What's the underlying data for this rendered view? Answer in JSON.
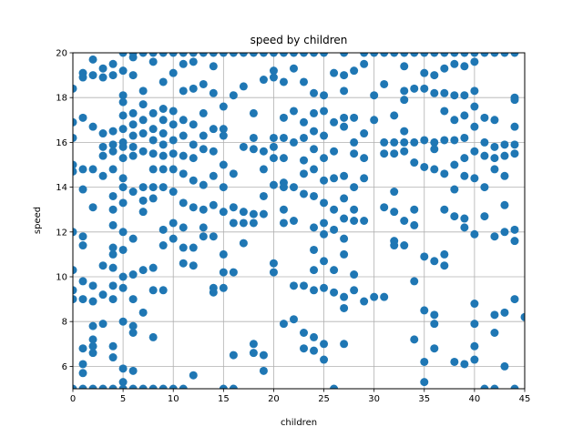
{
  "chart_data": {
    "type": "scatter",
    "title": "speed by children",
    "xlabel": "children",
    "ylabel": "speed",
    "xlim": [
      0,
      45
    ],
    "ylim": [
      5,
      20
    ],
    "xticks": [
      "0",
      "5",
      "10",
      "15",
      "20",
      "25",
      "30",
      "35",
      "40",
      "45"
    ],
    "yticks": [
      "6",
      "8",
      "10",
      "12",
      "14",
      "16",
      "18",
      "20"
    ],
    "grid": true,
    "marker_color": "#1f77b4",
    "points": [
      [
        0,
        18.4
      ],
      [
        0,
        16.9
      ],
      [
        0,
        16.2
      ],
      [
        0,
        15.0
      ],
      [
        0,
        14.7
      ],
      [
        0,
        12.0
      ],
      [
        0,
        10.3
      ],
      [
        0,
        9.4
      ],
      [
        0,
        9.0
      ],
      [
        0,
        5.0
      ],
      [
        1,
        19.1
      ],
      [
        1,
        18.9
      ],
      [
        1,
        17.1
      ],
      [
        1,
        14.8
      ],
      [
        1,
        13.9
      ],
      [
        1,
        11.8
      ],
      [
        1,
        11.4
      ],
      [
        1,
        9.8
      ],
      [
        1,
        9.0
      ],
      [
        1,
        6.8
      ],
      [
        1,
        6.1
      ],
      [
        1,
        5.7
      ],
      [
        1,
        5.0
      ],
      [
        2,
        19.7
      ],
      [
        2,
        19.0
      ],
      [
        2,
        16.7
      ],
      [
        2,
        14.8
      ],
      [
        2,
        13.1
      ],
      [
        2,
        9.6
      ],
      [
        2,
        8.9
      ],
      [
        2,
        7.8
      ],
      [
        2,
        7.2
      ],
      [
        2,
        6.9
      ],
      [
        2,
        6.6
      ],
      [
        2,
        5.0
      ],
      [
        3,
        19.3
      ],
      [
        3,
        18.9
      ],
      [
        3,
        16.4
      ],
      [
        3,
        15.8
      ],
      [
        3,
        15.4
      ],
      [
        3,
        14.5
      ],
      [
        3,
        10.5
      ],
      [
        3,
        9.2
      ],
      [
        3,
        7.9
      ],
      [
        3,
        5.0
      ],
      [
        4,
        19.5
      ],
      [
        4,
        19.0
      ],
      [
        4,
        16.5
      ],
      [
        4,
        15.9
      ],
      [
        4,
        15.6
      ],
      [
        4,
        14.8
      ],
      [
        4,
        13.6
      ],
      [
        4,
        13.0
      ],
      [
        4,
        12.3
      ],
      [
        4,
        11.3
      ],
      [
        4,
        11.0
      ],
      [
        4,
        10.4
      ],
      [
        4,
        9.6
      ],
      [
        4,
        9.0
      ],
      [
        4,
        6.9
      ],
      [
        4,
        6.4
      ],
      [
        4,
        5.0
      ],
      [
        5,
        20.0
      ],
      [
        5,
        19.2
      ],
      [
        5,
        18.1
      ],
      [
        5,
        17.8
      ],
      [
        5,
        17.2
      ],
      [
        5,
        16.6
      ],
      [
        5,
        16.0
      ],
      [
        5,
        15.8
      ],
      [
        5,
        15.3
      ],
      [
        5,
        14.4
      ],
      [
        5,
        14.0
      ],
      [
        5,
        13.3
      ],
      [
        5,
        12.0
      ],
      [
        5,
        11.2
      ],
      [
        5,
        10.0
      ],
      [
        5,
        9.5
      ],
      [
        5,
        8.0
      ],
      [
        5,
        5.9
      ],
      [
        5,
        5.3
      ],
      [
        5,
        5.0
      ],
      [
        6,
        20.0
      ],
      [
        6,
        19.8
      ],
      [
        6,
        19.0
      ],
      [
        6,
        17.3
      ],
      [
        6,
        16.8
      ],
      [
        6,
        16.3
      ],
      [
        6,
        15.8
      ],
      [
        6,
        15.4
      ],
      [
        6,
        13.8
      ],
      [
        6,
        11.7
      ],
      [
        6,
        10.1
      ],
      [
        6,
        9.0
      ],
      [
        6,
        7.8
      ],
      [
        6,
        7.5
      ],
      [
        6,
        5.8
      ],
      [
        6,
        5.0
      ],
      [
        7,
        20.0
      ],
      [
        7,
        18.3
      ],
      [
        7,
        17.7
      ],
      [
        7,
        17.0
      ],
      [
        7,
        16.4
      ],
      [
        7,
        15.6
      ],
      [
        7,
        14.0
      ],
      [
        7,
        13.4
      ],
      [
        7,
        12.9
      ],
      [
        7,
        10.3
      ],
      [
        7,
        8.4
      ],
      [
        7,
        5.0
      ],
      [
        8,
        20.0
      ],
      [
        8,
        19.6
      ],
      [
        8,
        17.3
      ],
      [
        8,
        16.6
      ],
      [
        8,
        16.1
      ],
      [
        8,
        15.5
      ],
      [
        8,
        14.8
      ],
      [
        8,
        14.0
      ],
      [
        8,
        13.5
      ],
      [
        8,
        10.4
      ],
      [
        8,
        9.4
      ],
      [
        8,
        7.3
      ],
      [
        8,
        5.0
      ],
      [
        9,
        20.0
      ],
      [
        9,
        18.7
      ],
      [
        9,
        17.5
      ],
      [
        9,
        17.0
      ],
      [
        9,
        16.4
      ],
      [
        9,
        15.9
      ],
      [
        9,
        15.4
      ],
      [
        9,
        14.8
      ],
      [
        9,
        14.0
      ],
      [
        9,
        12.1
      ],
      [
        9,
        11.4
      ],
      [
        9,
        9.4
      ],
      [
        9,
        5.0
      ],
      [
        10,
        20.0
      ],
      [
        10,
        19.1
      ],
      [
        10,
        17.4
      ],
      [
        10,
        16.8
      ],
      [
        10,
        16.1
      ],
      [
        10,
        15.5
      ],
      [
        10,
        14.8
      ],
      [
        10,
        13.8
      ],
      [
        10,
        12.4
      ],
      [
        10,
        11.7
      ],
      [
        10,
        5.0
      ],
      [
        11,
        20.0
      ],
      [
        11,
        19.5
      ],
      [
        11,
        18.3
      ],
      [
        11,
        17.0
      ],
      [
        11,
        16.3
      ],
      [
        11,
        15.4
      ],
      [
        11,
        14.6
      ],
      [
        11,
        13.3
      ],
      [
        11,
        12.2
      ],
      [
        11,
        11.3
      ],
      [
        11,
        10.6
      ],
      [
        11,
        5.0
      ],
      [
        12,
        20.0
      ],
      [
        12,
        19.6
      ],
      [
        12,
        18.4
      ],
      [
        12,
        16.8
      ],
      [
        12,
        15.9
      ],
      [
        12,
        15.3
      ],
      [
        12,
        14.3
      ],
      [
        12,
        13.1
      ],
      [
        12,
        11.3
      ],
      [
        12,
        10.5
      ],
      [
        12,
        5.6
      ],
      [
        13,
        20.0
      ],
      [
        13,
        18.6
      ],
      [
        13,
        17.3
      ],
      [
        13,
        16.3
      ],
      [
        13,
        15.7
      ],
      [
        13,
        14.1
      ],
      [
        13,
        13.0
      ],
      [
        13,
        12.2
      ],
      [
        13,
        11.8
      ],
      [
        14,
        20.0
      ],
      [
        14,
        19.4
      ],
      [
        14,
        18.2
      ],
      [
        14,
        16.6
      ],
      [
        14,
        15.6
      ],
      [
        14,
        14.5
      ],
      [
        14,
        13.2
      ],
      [
        14,
        11.8
      ],
      [
        14,
        9.5
      ],
      [
        14,
        9.3
      ],
      [
        15,
        20.0
      ],
      [
        15,
        17.6
      ],
      [
        15,
        16.6
      ],
      [
        15,
        16.3
      ],
      [
        15,
        15.0
      ],
      [
        15,
        14.0
      ],
      [
        15,
        12.9
      ],
      [
        15,
        11.0
      ],
      [
        15,
        10.2
      ],
      [
        15,
        9.5
      ],
      [
        15,
        5.0
      ],
      [
        16,
        20.0
      ],
      [
        16,
        18.1
      ],
      [
        16,
        14.6
      ],
      [
        16,
        13.1
      ],
      [
        16,
        12.4
      ],
      [
        16,
        10.2
      ],
      [
        16,
        6.5
      ],
      [
        16,
        5.0
      ],
      [
        17,
        20.0
      ],
      [
        17,
        18.5
      ],
      [
        17,
        15.8
      ],
      [
        17,
        12.9
      ],
      [
        17,
        12.4
      ],
      [
        17,
        11.5
      ],
      [
        18,
        20.0
      ],
      [
        18,
        17.3
      ],
      [
        18,
        16.2
      ],
      [
        18,
        15.7
      ],
      [
        18,
        12.8
      ],
      [
        18,
        12.4
      ],
      [
        18,
        7.0
      ],
      [
        18,
        6.6
      ],
      [
        19,
        20.0
      ],
      [
        19,
        18.8
      ],
      [
        19,
        15.6
      ],
      [
        19,
        14.8
      ],
      [
        19,
        13.6
      ],
      [
        19,
        12.8
      ],
      [
        19,
        6.5
      ],
      [
        19,
        5.8
      ],
      [
        20,
        20.0
      ],
      [
        20,
        19.2
      ],
      [
        20,
        18.9
      ],
      [
        20,
        16.2
      ],
      [
        20,
        15.8
      ],
      [
        20,
        15.3
      ],
      [
        20,
        14.1
      ],
      [
        20,
        10.6
      ],
      [
        20,
        10.2
      ],
      [
        21,
        20.0
      ],
      [
        21,
        18.7
      ],
      [
        21,
        17.1
      ],
      [
        21,
        16.2
      ],
      [
        21,
        15.3
      ],
      [
        21,
        14.2
      ],
      [
        21,
        14.0
      ],
      [
        21,
        13.0
      ],
      [
        21,
        12.4
      ],
      [
        21,
        7.9
      ],
      [
        22,
        20.0
      ],
      [
        22,
        19.3
      ],
      [
        22,
        17.4
      ],
      [
        22,
        16.0
      ],
      [
        22,
        14.0
      ],
      [
        22,
        12.5
      ],
      [
        22,
        9.6
      ],
      [
        22,
        8.1
      ],
      [
        23,
        20.0
      ],
      [
        23,
        18.7
      ],
      [
        23,
        16.9
      ],
      [
        23,
        16.2
      ],
      [
        23,
        15.2
      ],
      [
        23,
        14.6
      ],
      [
        23,
        13.7
      ],
      [
        23,
        9.6
      ],
      [
        23,
        7.5
      ],
      [
        23,
        6.8
      ],
      [
        24,
        20.0
      ],
      [
        24,
        18.2
      ],
      [
        24,
        17.3
      ],
      [
        24,
        16.5
      ],
      [
        24,
        15.7
      ],
      [
        24,
        14.8
      ],
      [
        24,
        13.6
      ],
      [
        24,
        12.2
      ],
      [
        24,
        11.2
      ],
      [
        24,
        10.3
      ],
      [
        24,
        9.4
      ],
      [
        24,
        7.3
      ],
      [
        24,
        6.7
      ],
      [
        25,
        20.0
      ],
      [
        25,
        18.1
      ],
      [
        25,
        17.4
      ],
      [
        25,
        16.3
      ],
      [
        25,
        15.3
      ],
      [
        25,
        14.3
      ],
      [
        25,
        13.3
      ],
      [
        25,
        12.4
      ],
      [
        25,
        11.9
      ],
      [
        25,
        10.7
      ],
      [
        25,
        9.5
      ],
      [
        25,
        7.0
      ],
      [
        25,
        6.3
      ],
      [
        26,
        19.1
      ],
      [
        26,
        16.9
      ],
      [
        26,
        15.6
      ],
      [
        26,
        14.4
      ],
      [
        26,
        13.0
      ],
      [
        26,
        12.1
      ],
      [
        26,
        10.3
      ],
      [
        26,
        9.3
      ],
      [
        26,
        5.0
      ],
      [
        27,
        20.0
      ],
      [
        27,
        19.0
      ],
      [
        27,
        18.3
      ],
      [
        27,
        17.1
      ],
      [
        27,
        16.7
      ],
      [
        27,
        14.5
      ],
      [
        27,
        13.5
      ],
      [
        27,
        12.6
      ],
      [
        27,
        11.7
      ],
      [
        27,
        11.0
      ],
      [
        27,
        9.1
      ],
      [
        27,
        8.6
      ],
      [
        27,
        7.0
      ],
      [
        28,
        19.2
      ],
      [
        28,
        17.1
      ],
      [
        28,
        16.0
      ],
      [
        28,
        15.5
      ],
      [
        28,
        14.0
      ],
      [
        28,
        13.0
      ],
      [
        28,
        12.5
      ],
      [
        28,
        10.1
      ],
      [
        28,
        9.4
      ],
      [
        29,
        20.0
      ],
      [
        29,
        19.5
      ],
      [
        29,
        16.4
      ],
      [
        29,
        15.3
      ],
      [
        29,
        14.4
      ],
      [
        29,
        12.5
      ],
      [
        29,
        8.9
      ],
      [
        30,
        20.0
      ],
      [
        30,
        18.1
      ],
      [
        30,
        17.0
      ],
      [
        30,
        9.1
      ],
      [
        31,
        20.0
      ],
      [
        31,
        18.6
      ],
      [
        31,
        16.0
      ],
      [
        31,
        15.5
      ],
      [
        31,
        13.1
      ],
      [
        31,
        9.1
      ],
      [
        32,
        20.0
      ],
      [
        32,
        17.2
      ],
      [
        32,
        16.0
      ],
      [
        32,
        15.5
      ],
      [
        32,
        13.8
      ],
      [
        32,
        12.9
      ],
      [
        32,
        11.6
      ],
      [
        32,
        11.4
      ],
      [
        33,
        20.0
      ],
      [
        33,
        19.4
      ],
      [
        33,
        18.3
      ],
      [
        33,
        17.9
      ],
      [
        33,
        16.5
      ],
      [
        33,
        16.0
      ],
      [
        33,
        15.6
      ],
      [
        33,
        12.5
      ],
      [
        33,
        11.4
      ],
      [
        34,
        20.0
      ],
      [
        34,
        18.4
      ],
      [
        34,
        16.0
      ],
      [
        34,
        15.1
      ],
      [
        34,
        13.0
      ],
      [
        34,
        12.3
      ],
      [
        34,
        9.8
      ],
      [
        34,
        7.2
      ],
      [
        35,
        20.0
      ],
      [
        35,
        19.1
      ],
      [
        35,
        18.4
      ],
      [
        35,
        16.1
      ],
      [
        35,
        14.9
      ],
      [
        35,
        10.9
      ],
      [
        35,
        8.5
      ],
      [
        35,
        6.2
      ],
      [
        35,
        5.3
      ],
      [
        36,
        20.0
      ],
      [
        36,
        19.0
      ],
      [
        36,
        18.2
      ],
      [
        36,
        16.0
      ],
      [
        36,
        15.7
      ],
      [
        36,
        14.8
      ],
      [
        36,
        10.7
      ],
      [
        36,
        8.3
      ],
      [
        36,
        7.9
      ],
      [
        36,
        6.8
      ],
      [
        37,
        20.0
      ],
      [
        37,
        19.3
      ],
      [
        37,
        18.2
      ],
      [
        37,
        17.4
      ],
      [
        37,
        16.1
      ],
      [
        37,
        14.6
      ],
      [
        37,
        13.0
      ],
      [
        37,
        11.0
      ],
      [
        37,
        10.5
      ],
      [
        38,
        20.0
      ],
      [
        38,
        19.5
      ],
      [
        38,
        18.1
      ],
      [
        38,
        17.0
      ],
      [
        38,
        16.1
      ],
      [
        38,
        15.0
      ],
      [
        38,
        13.9
      ],
      [
        38,
        12.7
      ],
      [
        38,
        6.2
      ],
      [
        39,
        20.0
      ],
      [
        39,
        19.4
      ],
      [
        39,
        18.1
      ],
      [
        39,
        17.2
      ],
      [
        39,
        16.2
      ],
      [
        39,
        15.3
      ],
      [
        39,
        14.5
      ],
      [
        39,
        12.6
      ],
      [
        39,
        12.2
      ],
      [
        39,
        6.1
      ],
      [
        40,
        20.0
      ],
      [
        40,
        19.6
      ],
      [
        40,
        18.3
      ],
      [
        40,
        17.6
      ],
      [
        40,
        16.7
      ],
      [
        40,
        15.6
      ],
      [
        40,
        14.4
      ],
      [
        40,
        11.9
      ],
      [
        40,
        8.8
      ],
      [
        40,
        7.9
      ],
      [
        40,
        6.9
      ],
      [
        40,
        6.3
      ],
      [
        41,
        20.0
      ],
      [
        41,
        17.1
      ],
      [
        41,
        16.0
      ],
      [
        41,
        15.4
      ],
      [
        41,
        14.0
      ],
      [
        41,
        12.7
      ],
      [
        41,
        5.0
      ],
      [
        42,
        20.0
      ],
      [
        42,
        17.0
      ],
      [
        42,
        15.8
      ],
      [
        42,
        15.3
      ],
      [
        42,
        14.8
      ],
      [
        42,
        11.8
      ],
      [
        42,
        8.3
      ],
      [
        42,
        7.5
      ],
      [
        42,
        5.0
      ],
      [
        43,
        20.0
      ],
      [
        43,
        15.9
      ],
      [
        43,
        15.4
      ],
      [
        43,
        14.5
      ],
      [
        43,
        13.2
      ],
      [
        43,
        12.0
      ],
      [
        43,
        8.4
      ],
      [
        43,
        6.0
      ],
      [
        44,
        20.0
      ],
      [
        44,
        18.0
      ],
      [
        44,
        17.9
      ],
      [
        44,
        16.7
      ],
      [
        44,
        15.9
      ],
      [
        44,
        15.5
      ],
      [
        44,
        12.1
      ],
      [
        44,
        11.6
      ],
      [
        44,
        9.0
      ],
      [
        44,
        5.0
      ],
      [
        45,
        8.2
      ]
    ]
  }
}
